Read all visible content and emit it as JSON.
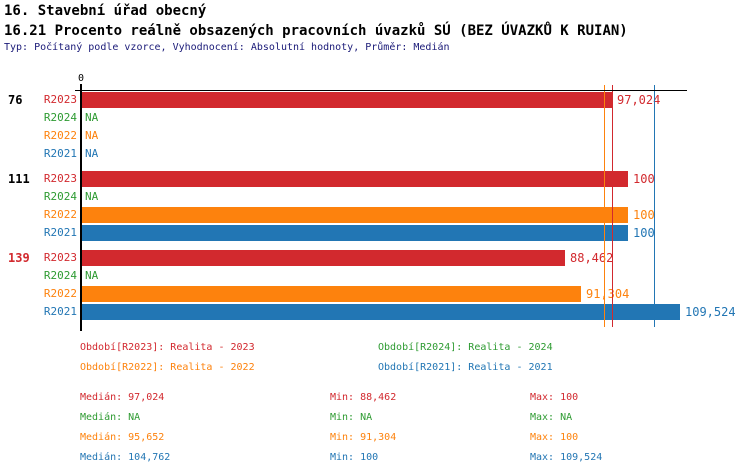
{
  "header": {
    "title_line1": "16. Stavební úřad obecný",
    "title_line2": "16.21 Procento reálně obsazených pracovních úvazků SÚ (BEZ ÚVAZKŮ K RUIAN)",
    "meta_line": "Typ: Počítaný podle vzorce, Vyhodnocení: Absolutní hodnoty, Průměr: Medián"
  },
  "colors": {
    "R2023": "#d2292e",
    "R2024": "#2e9b32",
    "R2022": "#fd820d",
    "R2021": "#2276b4",
    "axis": "#000000",
    "meta_text": "#1a1a78",
    "group_label_default": "#000000",
    "group_label_alert": "#d2292e"
  },
  "chart_data": {
    "type": "bar",
    "orientation": "horizontal",
    "title": "16.21 Procento reálně obsazených pracovních úvazků SÚ (BEZ ÚVAZKŮ K RUIAN)",
    "x_axis": {
      "min": 0,
      "max": 110.6,
      "zero_label": "0",
      "gridlines": false
    },
    "series_order": [
      "R2023",
      "R2024",
      "R2022",
      "R2021"
    ],
    "groups": [
      {
        "label": "76",
        "label_color_key": "group_label_default",
        "bars": [
          {
            "series": "R2023",
            "value": 97.024,
            "display": "97,024"
          },
          {
            "series": "R2024",
            "value": null,
            "display": "NA"
          },
          {
            "series": "R2022",
            "value": null,
            "display": "NA"
          },
          {
            "series": "R2021",
            "value": null,
            "display": "NA"
          }
        ]
      },
      {
        "label": "111",
        "label_color_key": "group_label_default",
        "bars": [
          {
            "series": "R2023",
            "value": 100,
            "display": "100"
          },
          {
            "series": "R2024",
            "value": null,
            "display": "NA"
          },
          {
            "series": "R2022",
            "value": 100,
            "display": "100"
          },
          {
            "series": "R2021",
            "value": 100,
            "display": "100"
          }
        ]
      },
      {
        "label": "139",
        "label_color_key": "group_label_alert",
        "bars": [
          {
            "series": "R2023",
            "value": 88.462,
            "display": "88,462"
          },
          {
            "series": "R2024",
            "value": null,
            "display": "NA"
          },
          {
            "series": "R2022",
            "value": 91.304,
            "display": "91,304"
          },
          {
            "series": "R2021",
            "value": 109.524,
            "display": "109,524"
          }
        ]
      }
    ],
    "median_lines": [
      {
        "series": "R2022",
        "value": 95.652
      },
      {
        "series": "R2023",
        "value": 97.024
      },
      {
        "series": "R2021",
        "value": 104.762
      }
    ]
  },
  "legend": {
    "items": [
      {
        "series": "R2023",
        "label": "Období[R2023]: Realita - 2023"
      },
      {
        "series": "R2024",
        "label": "Období[R2024]: Realita - 2024"
      },
      {
        "series": "R2022",
        "label": "Období[R2022]: Realita - 2022"
      },
      {
        "series": "R2021",
        "label": "Období[R2021]: Realita - 2021"
      }
    ]
  },
  "stats": {
    "rows": [
      {
        "series": "R2023",
        "median": "Medián: 97,024",
        "min": "Min: 88,462",
        "max": "Max: 100"
      },
      {
        "series": "R2024",
        "median": "Medián: NA",
        "min": "Min: NA",
        "max": "Max: NA"
      },
      {
        "series": "R2022",
        "median": "Medián: 95,652",
        "min": "Min: 91,304",
        "max": "Max: 100"
      },
      {
        "series": "R2021",
        "median": "Medián: 104,762",
        "min": "Min: 100",
        "max": "Max: 109,524"
      }
    ]
  }
}
